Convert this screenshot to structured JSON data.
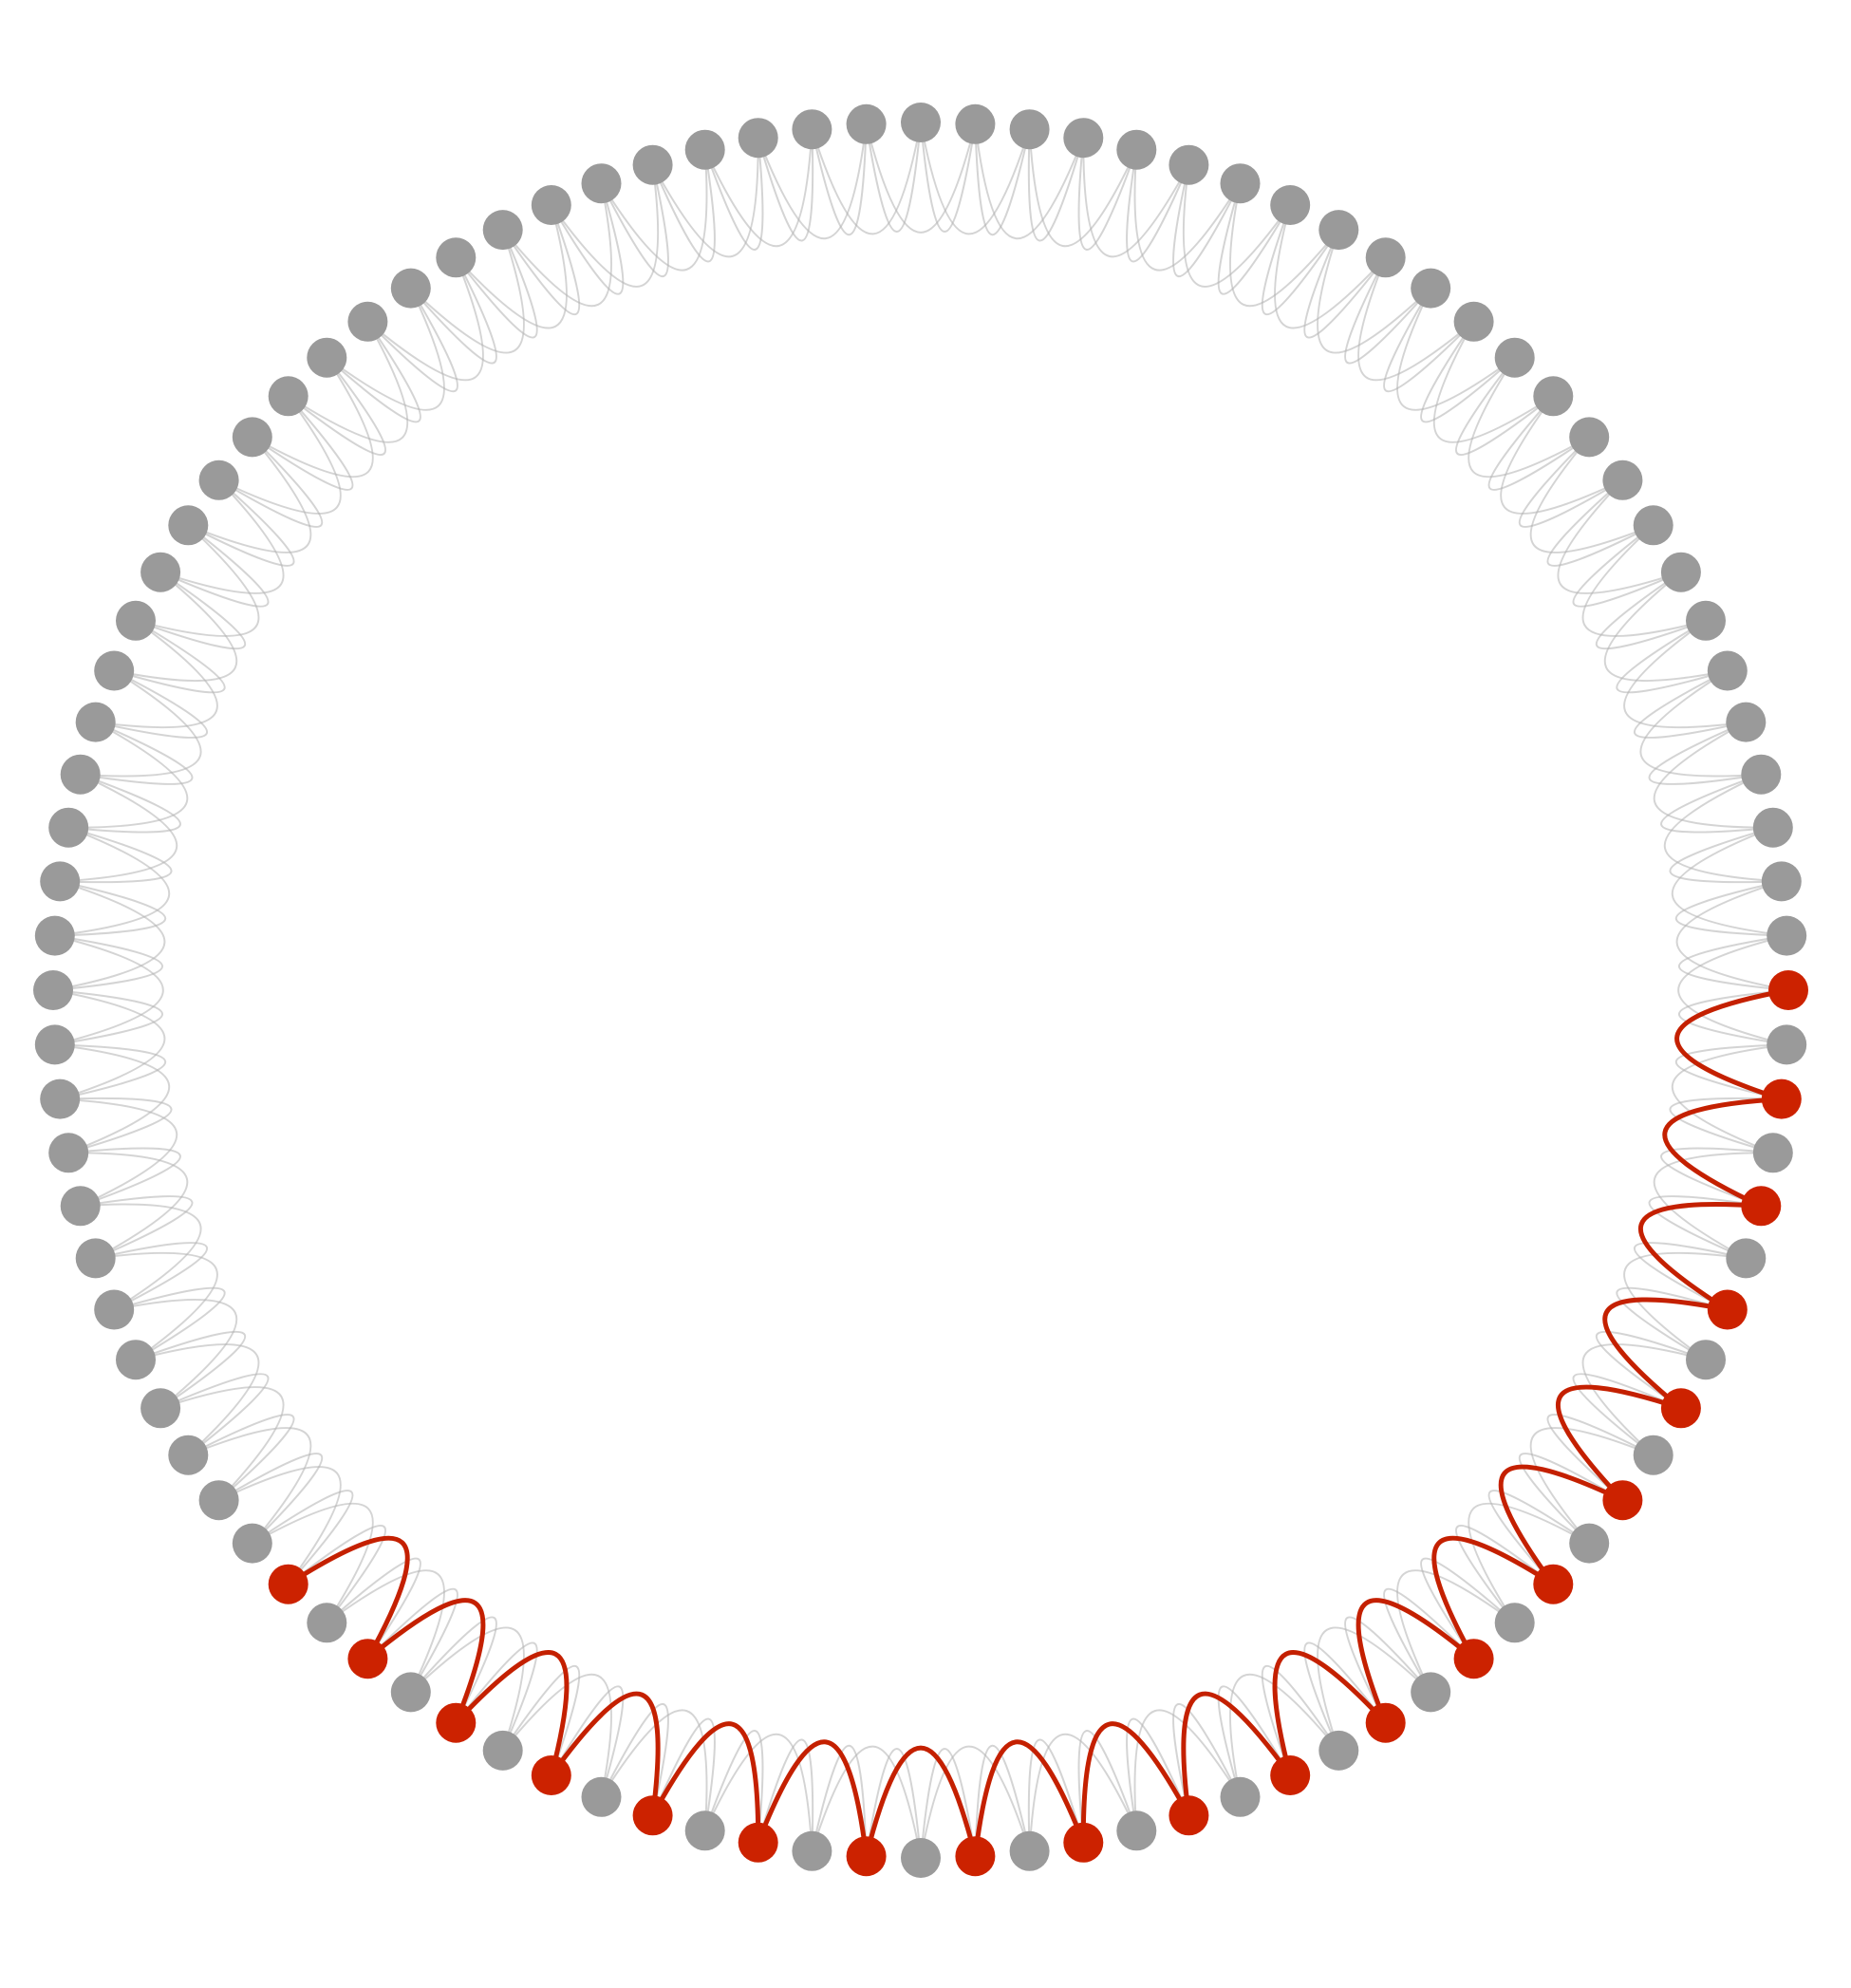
{
  "diagram": {
    "type": "circular-ring-lattice",
    "node_count": 100,
    "ring_distance": 2,
    "highlight_start": 0,
    "highlight_end": 38,
    "highlight_step": 2,
    "colors": {
      "background": "#ffffff",
      "node_default": "#9a9a9a",
      "node_highlight": "#cc2200",
      "edge_default": "#b0b0b0",
      "edge_highlight": "#c42000"
    }
  }
}
